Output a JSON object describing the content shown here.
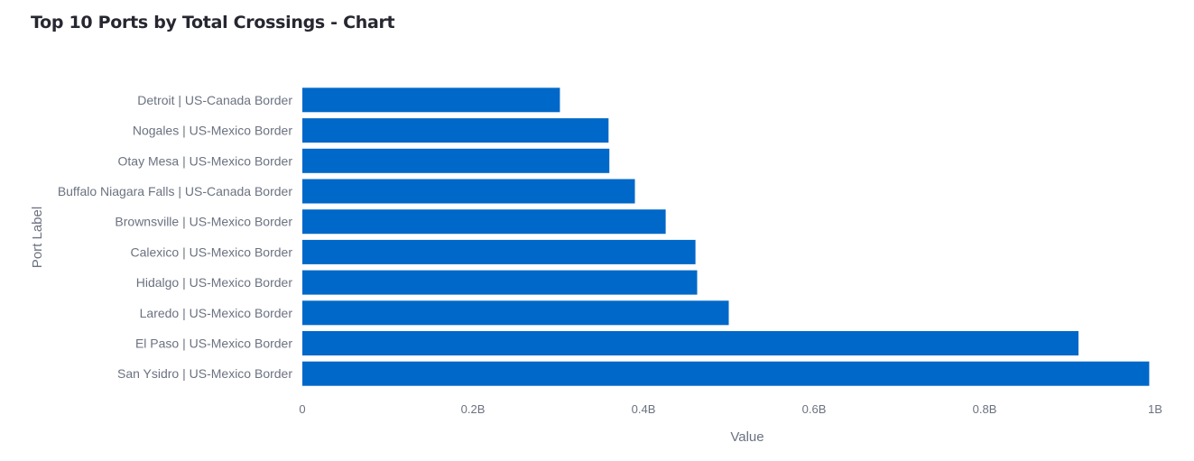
{
  "chart_data": {
    "type": "bar",
    "orientation": "horizontal",
    "title": "Top 10 Ports by Total Crossings - Chart",
    "xlabel": "Value",
    "ylabel": "Port Label",
    "xlim": [
      0,
      1000000000
    ],
    "x_ticks": [
      {
        "value": 0,
        "label": "0"
      },
      {
        "value": 200000000,
        "label": "0.2B"
      },
      {
        "value": 400000000,
        "label": "0.4B"
      },
      {
        "value": 600000000,
        "label": "0.6B"
      },
      {
        "value": 800000000,
        "label": "0.8B"
      },
      {
        "value": 1000000000,
        "label": "1B"
      }
    ],
    "grid": false,
    "bar_color": "#0068c9",
    "categories": [
      "Detroit | US-Canada Border",
      "Nogales | US-Mexico Border",
      "Otay Mesa | US-Mexico Border",
      "Buffalo Niagara Falls | US-Canada Border",
      "Brownsville | US-Mexico Border",
      "Calexico | US-Mexico Border",
      "Hidalgo | US-Mexico Border",
      "Laredo | US-Mexico Border",
      "El Paso | US-Mexico Border",
      "San Ysidro | US-Mexico Border"
    ],
    "values": [
      302000000,
      359000000,
      360000000,
      390000000,
      426000000,
      461000000,
      463000000,
      500000000,
      910000000,
      993000000
    ]
  }
}
